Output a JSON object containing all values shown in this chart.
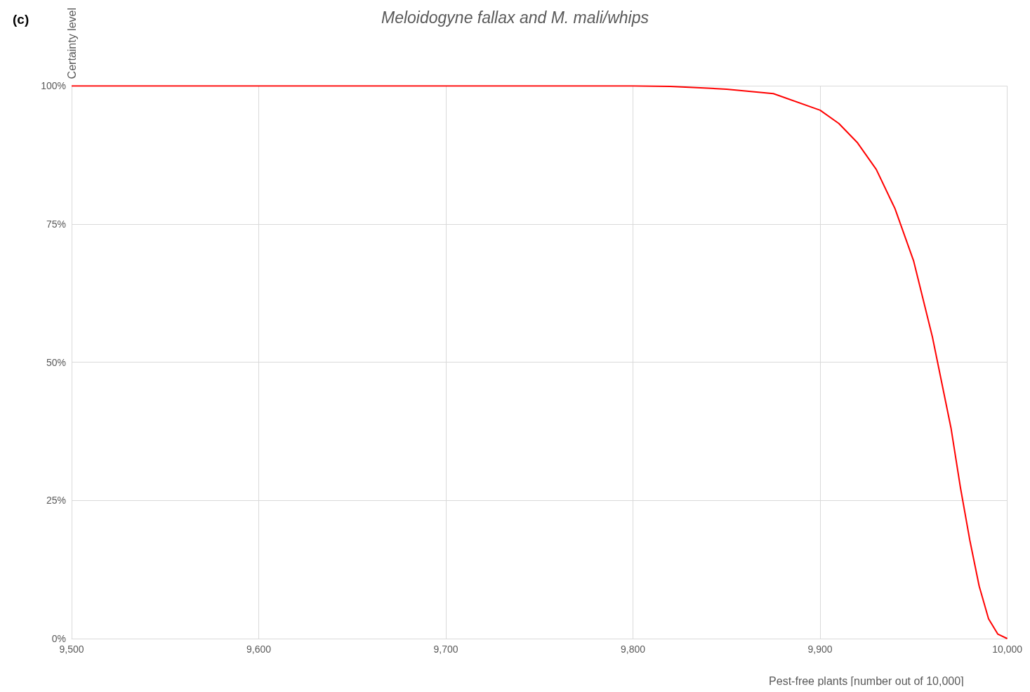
{
  "chart_data": {
    "type": "line",
    "title": "Meloidogyne fallax and M. mali/whips",
    "xlabel": "Pest-free plants [number out of 10,000]",
    "ylabel": "Certainty level",
    "annotations": [
      "(c)"
    ],
    "x": [
      9500,
      9600,
      9700,
      9800,
      9820,
      9840,
      9850,
      9875,
      9900,
      9910,
      9920,
      9930,
      9940,
      9950,
      9960,
      9965,
      9970,
      9975,
      9980,
      9985,
      9990,
      9995,
      10000
    ],
    "series": [
      {
        "color": "#ff0000",
        "values": [
          100,
          100,
          100,
          100,
          99.9,
          99.6,
          99.4,
          98.6,
          95.6,
          93.2,
          89.7,
          84.9,
          77.8,
          68.3,
          54.6,
          46.3,
          38,
          27.3,
          17.8,
          9.5,
          3.6,
          0.8,
          0
        ]
      }
    ],
    "xlim": [
      9500,
      10000
    ],
    "ylim": [
      0,
      100
    ],
    "xticks": [
      {
        "value": 9500,
        "label": "9,500"
      },
      {
        "value": 9600,
        "label": "9,600"
      },
      {
        "value": 9700,
        "label": "9,700"
      },
      {
        "value": 9800,
        "label": "9,800"
      },
      {
        "value": 9900,
        "label": "9,900"
      },
      {
        "value": 10000,
        "label": "10,000"
      }
    ],
    "yticks": [
      {
        "value": 0,
        "label": "0%"
      },
      {
        "value": 25,
        "label": "25%"
      },
      {
        "value": 50,
        "label": "50%"
      },
      {
        "value": 75,
        "label": "75%"
      },
      {
        "value": 100,
        "label": "100%"
      }
    ],
    "grid": true,
    "marker": "none",
    "line_style": "solid"
  }
}
